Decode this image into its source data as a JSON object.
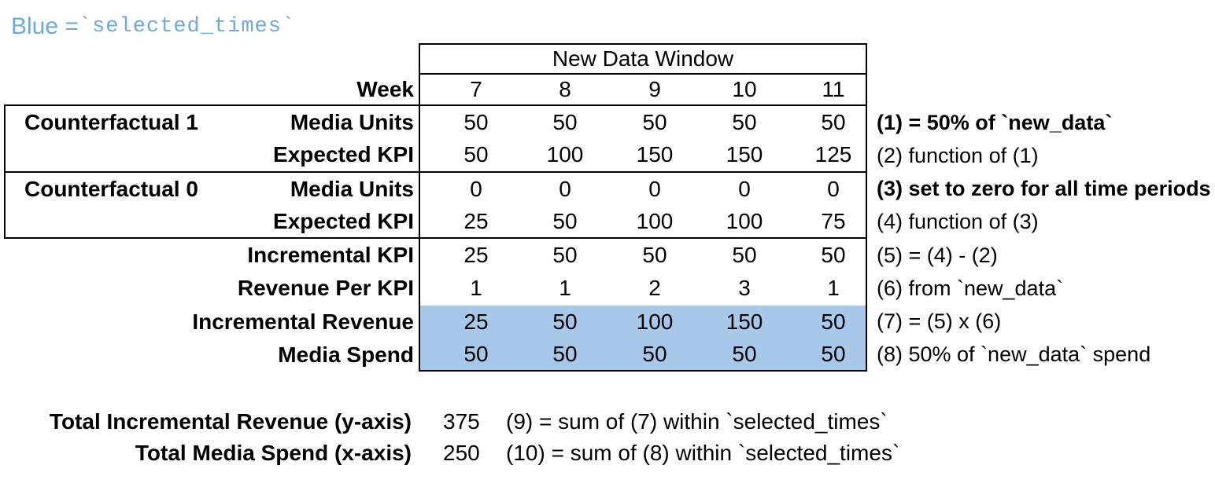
{
  "legend": {
    "prefix": "Blue = ",
    "code": "`selected_times`"
  },
  "table": {
    "header": "New Data Window",
    "week_label": "Week",
    "weeks": [
      "7",
      "8",
      "9",
      "10",
      "11"
    ],
    "rows": [
      {
        "group": "Counterfactual 1",
        "label": "Media Units",
        "values": [
          "50",
          "50",
          "50",
          "50",
          "50"
        ],
        "note": "(1) = 50% of `new_data`",
        "note_bold": true,
        "highlight": false
      },
      {
        "group": "",
        "label": "Expected KPI",
        "values": [
          "50",
          "100",
          "150",
          "150",
          "125"
        ],
        "note": "(2) function of (1)",
        "note_bold": false,
        "highlight": false
      },
      {
        "group": "Counterfactual 0",
        "label": "Media Units",
        "values": [
          "0",
          "0",
          "0",
          "0",
          "0"
        ],
        "note": "(3) set to zero for all time periods",
        "note_bold": true,
        "highlight": false
      },
      {
        "group": "",
        "label": "Expected KPI",
        "values": [
          "25",
          "50",
          "100",
          "100",
          "75"
        ],
        "note": "(4) function of (3)",
        "note_bold": false,
        "highlight": false
      },
      {
        "group": "",
        "label": "Incremental KPI",
        "values": [
          "25",
          "50",
          "50",
          "50",
          "50"
        ],
        "note": "(5) = (4) - (2)",
        "note_bold": false,
        "highlight": false
      },
      {
        "group": "",
        "label": "Revenue Per KPI",
        "values": [
          "1",
          "1",
          "2",
          "3",
          "1"
        ],
        "note": "(6) from `new_data`",
        "note_bold": false,
        "highlight": false
      },
      {
        "group": "",
        "label": "Incremental Revenue",
        "values": [
          "25",
          "50",
          "100",
          "150",
          "50"
        ],
        "note": "(7) = (5) x (6)",
        "note_bold": false,
        "highlight": true
      },
      {
        "group": "",
        "label": "Media Spend",
        "values": [
          "50",
          "50",
          "50",
          "50",
          "50"
        ],
        "note": "(8) 50% of `new_data` spend",
        "note_bold": false,
        "highlight": true
      }
    ]
  },
  "totals": [
    {
      "label": "Total Incremental Revenue (y-axis)",
      "value": "375",
      "note": "(9) = sum of (7) within `selected_times`"
    },
    {
      "label": "Total Media Spend (x-axis)",
      "value": "250",
      "note": "(10) = sum of (8) within `selected_times`"
    }
  ],
  "colors": {
    "highlight": "#a8c8ea",
    "legend_blue": "#6fa8dc",
    "border": "#000000"
  }
}
